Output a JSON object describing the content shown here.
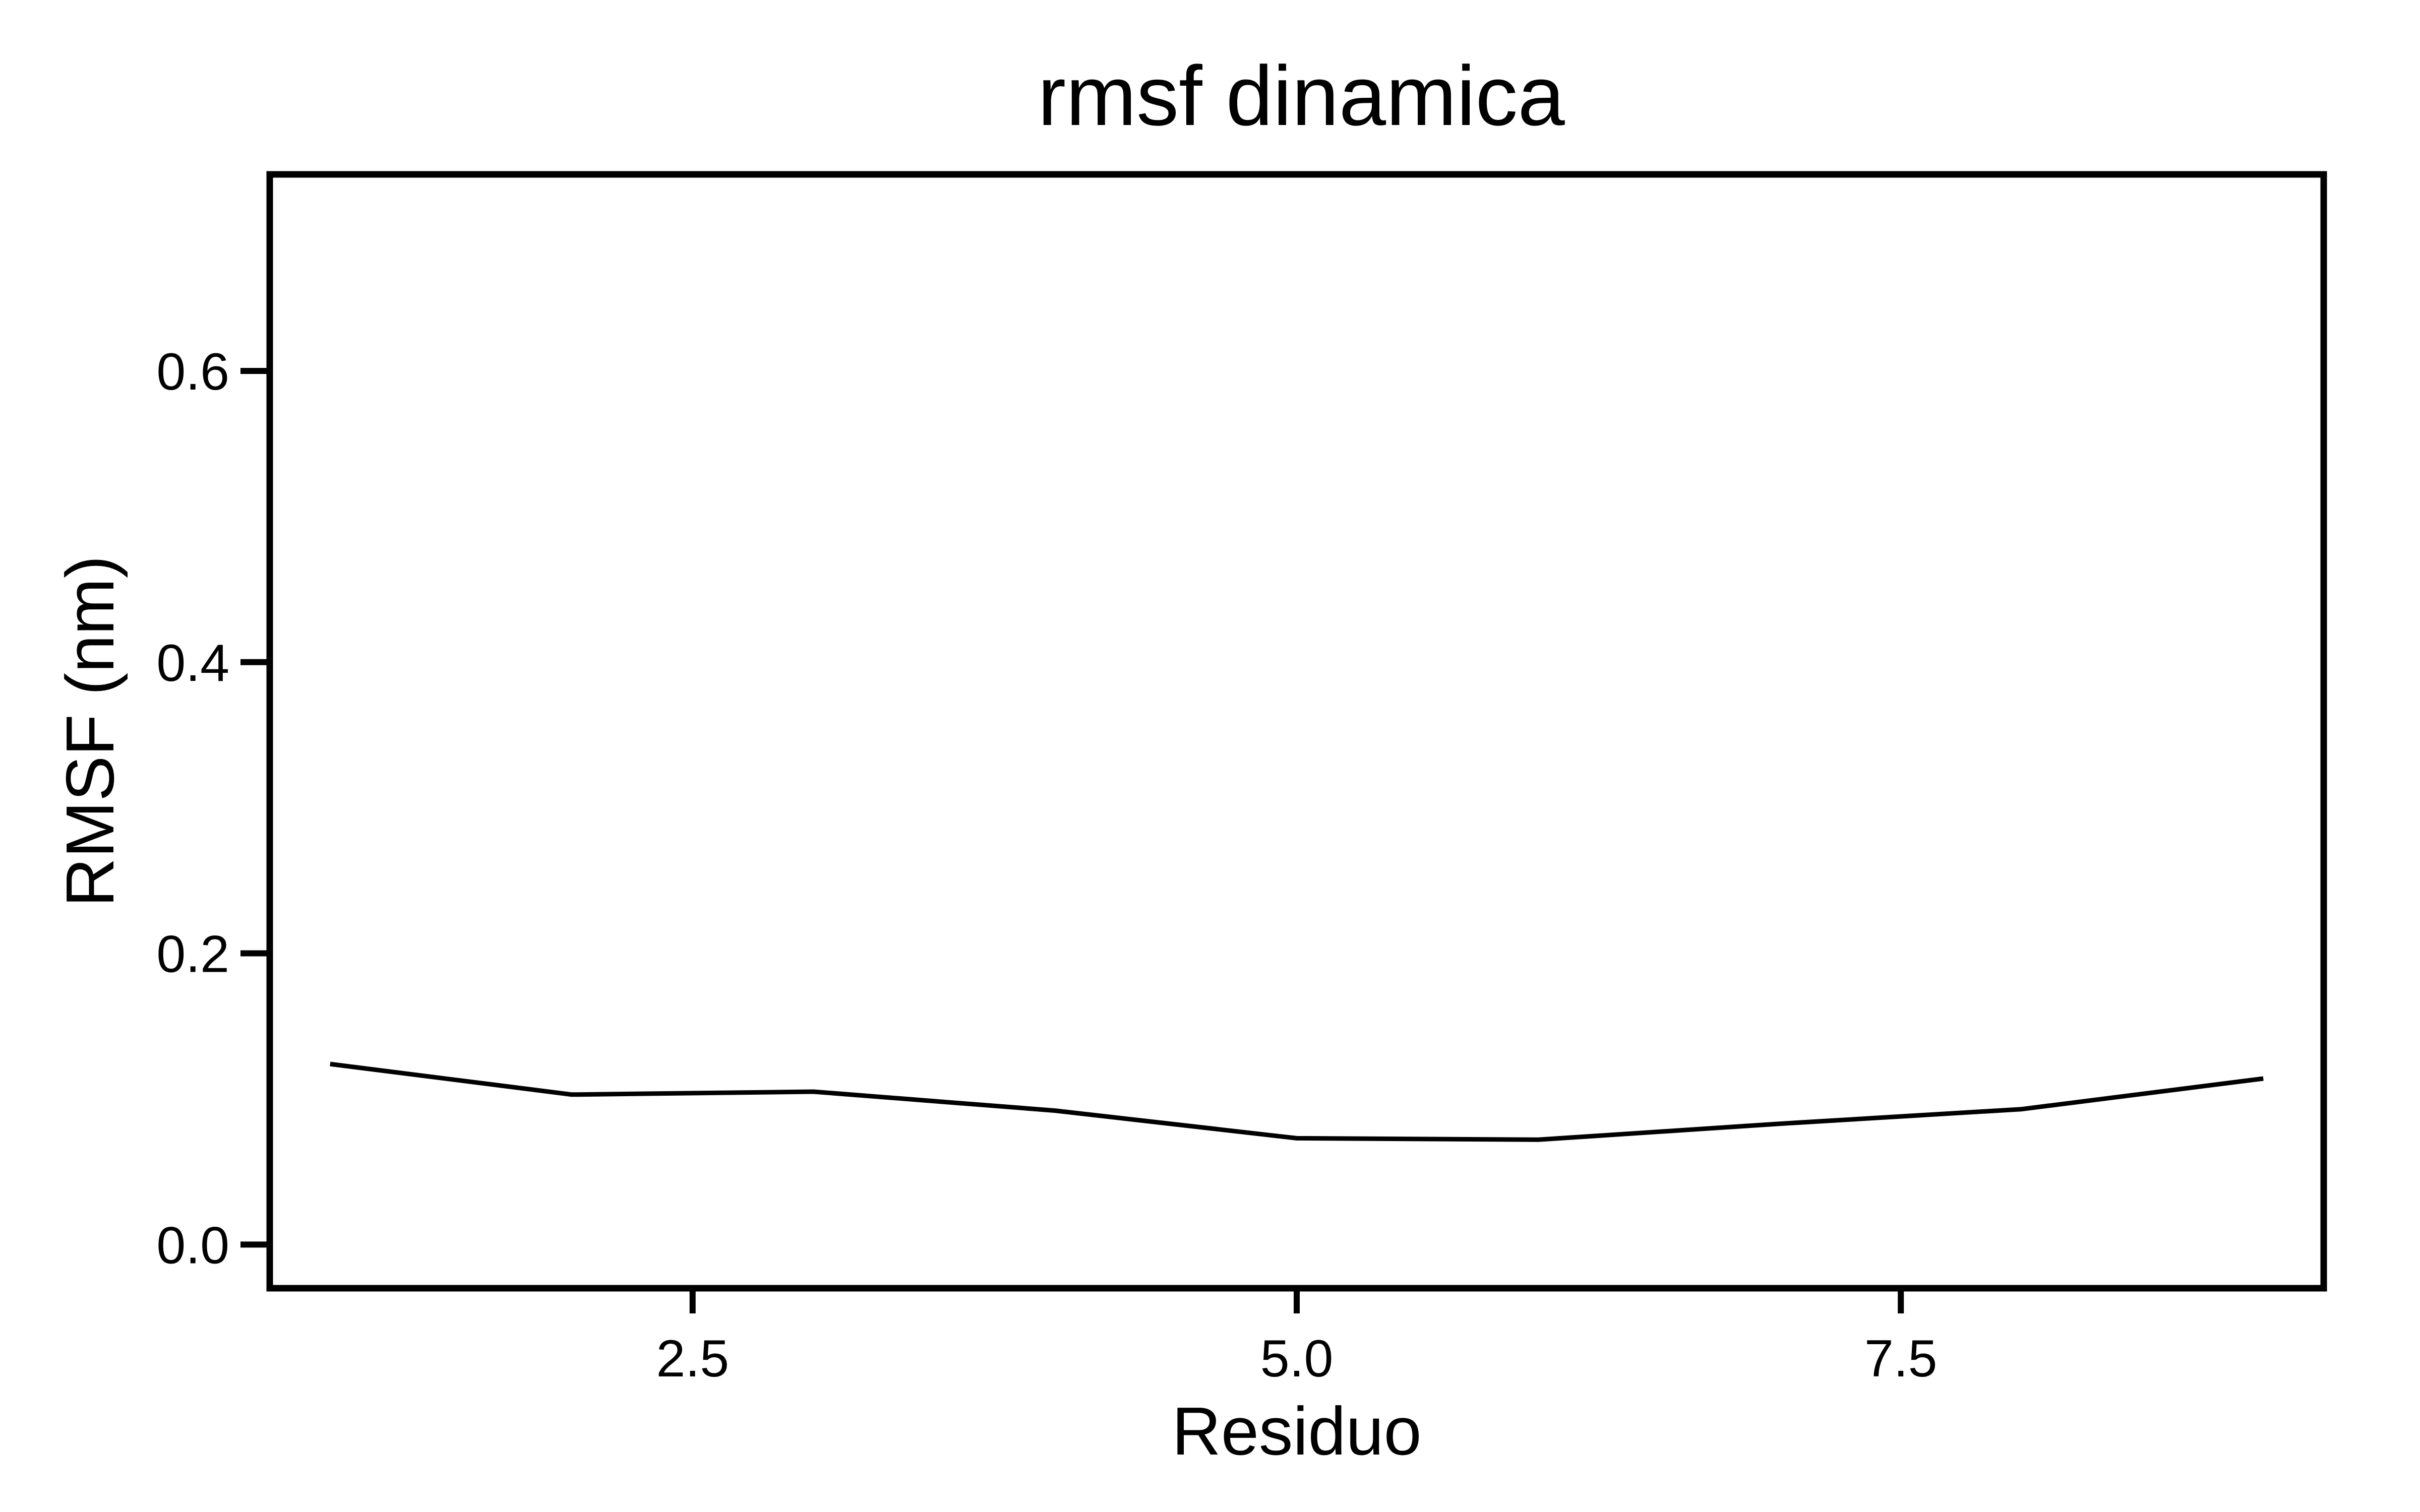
{
  "chart_data": {
    "type": "line",
    "title": "rmsf dinamica",
    "xlabel": "Residuo",
    "ylabel": "RMSF (nm)",
    "xlim": [
      0.75,
      9.25
    ],
    "ylim": [
      -0.03,
      0.735
    ],
    "xticks": [
      2.5,
      5.0,
      7.5
    ],
    "xtick_labels": [
      "2.5",
      "5.0",
      "7.5"
    ],
    "yticks": [
      0.0,
      0.2,
      0.4,
      0.6
    ],
    "ytick_labels": [
      "0.0",
      "0.2",
      "0.4",
      "0.6"
    ],
    "grid": false,
    "series": [
      {
        "color": "#000000",
        "x": [
          1,
          2,
          3,
          4,
          5,
          6,
          7,
          8,
          9
        ],
        "y": [
          0.124,
          0.103,
          0.105,
          0.092,
          0.073,
          0.072,
          0.083,
          0.093,
          0.114
        ]
      }
    ]
  }
}
